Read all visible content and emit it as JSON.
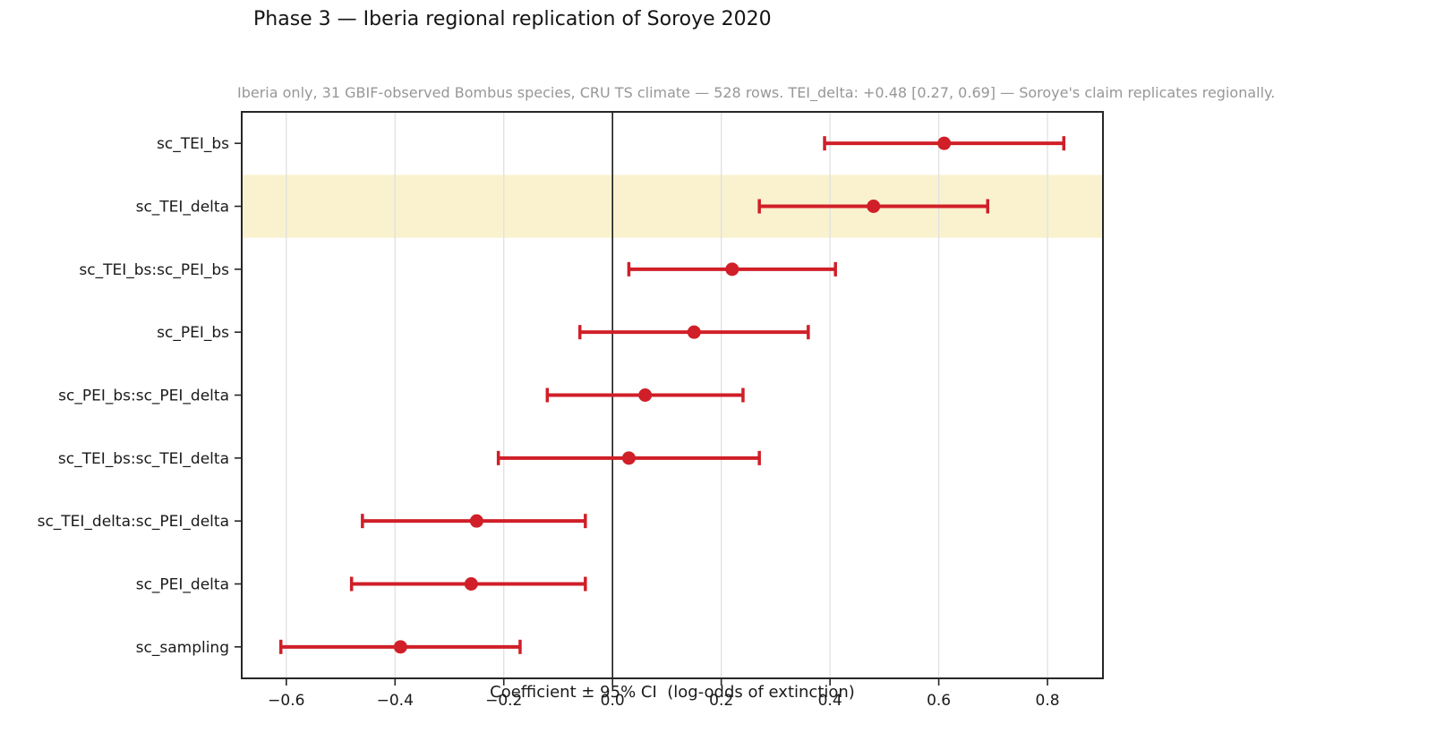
{
  "title": "Phase 3 — Iberia regional replication of Soroye 2020",
  "subtitle": "Iberia only, 31 GBIF-observed Bombus species, CRU TS climate — 528 rows. TEI_delta: +0.48 [0.27, 0.69] — Soroye's claim replicates regionally.",
  "xlabel": "Coefficient ± 95% CI  (log-odds of extinction)",
  "colors": {
    "point": "#d01f28",
    "error_bar": "#d01f28",
    "highlight_band": "#faf2cf",
    "grid": "#e0e0e0",
    "zero_line": "#1a1a1a",
    "spine": "#262626",
    "tick_text": "#1a1a1a",
    "subtitle_text": "#979797"
  },
  "chart_data": {
    "type": "scatter",
    "subtype": "forest-plot-errorbar-horizontal",
    "title": "Phase 3 — Iberia regional replication of Soroye 2020",
    "subtitle": "Iberia only, 31 GBIF-observed Bombus species, CRU TS climate — 528 rows. TEI_delta: +0.48 [0.27, 0.69] — Soroye's claim replicates regionally.",
    "xlabel": "Coefficient ± 95% CI  (log-odds of extinction)",
    "ylabel": "",
    "xlim": [
      -0.682,
      0.902
    ],
    "xticks": [
      -0.6,
      -0.4,
      -0.2,
      0.0,
      0.2,
      0.4,
      0.6,
      0.8
    ],
    "grid": "vertical-only-light",
    "zero_reference_line": 0.0,
    "legend": "none",
    "categories": [
      "sc_TEI_bs",
      "sc_TEI_delta",
      "sc_TEI_bs:sc_PEI_bs",
      "sc_PEI_bs",
      "sc_PEI_bs:sc_PEI_delta",
      "sc_TEI_bs:sc_TEI_delta",
      "sc_TEI_delta:sc_PEI_delta",
      "sc_PEI_delta",
      "sc_sampling"
    ],
    "points": [
      {
        "label": "sc_TEI_bs",
        "coef": 0.61,
        "ci_low": 0.39,
        "ci_high": 0.83,
        "highlight": false
      },
      {
        "label": "sc_TEI_delta",
        "coef": 0.48,
        "ci_low": 0.27,
        "ci_high": 0.69,
        "highlight": true
      },
      {
        "label": "sc_TEI_bs:sc_PEI_bs",
        "coef": 0.22,
        "ci_low": 0.03,
        "ci_high": 0.41,
        "highlight": false
      },
      {
        "label": "sc_PEI_bs",
        "coef": 0.15,
        "ci_low": -0.06,
        "ci_high": 0.36,
        "highlight": false
      },
      {
        "label": "sc_PEI_bs:sc_PEI_delta",
        "coef": 0.06,
        "ci_low": -0.12,
        "ci_high": 0.24,
        "highlight": false
      },
      {
        "label": "sc_TEI_bs:sc_TEI_delta",
        "coef": 0.03,
        "ci_low": -0.21,
        "ci_high": 0.27,
        "highlight": false
      },
      {
        "label": "sc_TEI_delta:sc_PEI_delta",
        "coef": -0.25,
        "ci_low": -0.46,
        "ci_high": -0.05,
        "highlight": false
      },
      {
        "label": "sc_PEI_delta",
        "coef": -0.26,
        "ci_low": -0.48,
        "ci_high": -0.05,
        "highlight": false
      },
      {
        "label": "sc_sampling",
        "coef": -0.39,
        "ci_low": -0.61,
        "ci_high": -0.17,
        "highlight": false
      }
    ]
  }
}
